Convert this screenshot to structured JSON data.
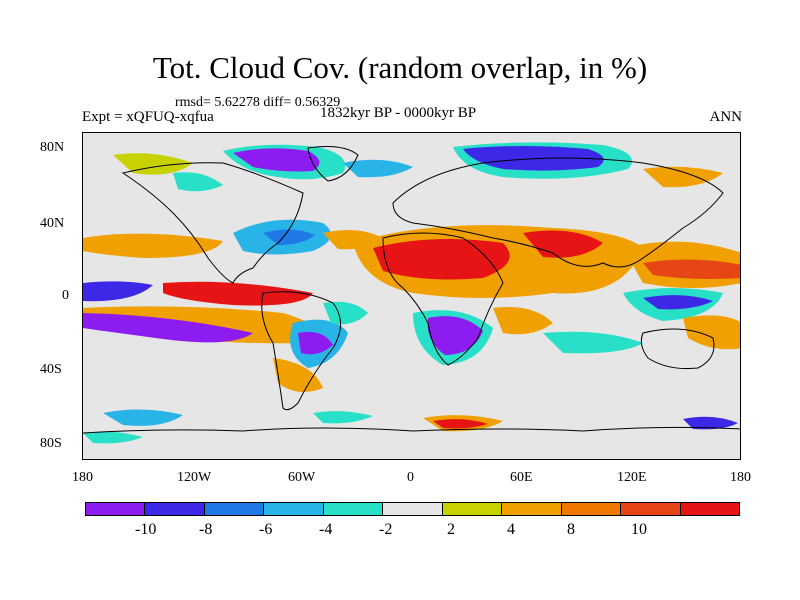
{
  "title": "Tot. Cloud Cov. (random overlap, in %)",
  "stats": "rmsd= 5.62278 diff= 0.56329",
  "experiment": "Expt = xQFUQ-xqfua",
  "period": "1832kyr BP - 0000kyr BP",
  "season": "ANN",
  "lat_labels": [
    "80N",
    "40N",
    "0",
    "40S",
    "80S"
  ],
  "lon_labels": [
    "180",
    "120W",
    "60W",
    "0",
    "60E",
    "120E",
    "180"
  ],
  "colorbar": {
    "colors": [
      "#8c1cf0",
      "#3c28e6",
      "#1e78e6",
      "#28b4e6",
      "#28e0c8",
      "#e6e6e6",
      "#c8d200",
      "#f0a000",
      "#f07800",
      "#e64614",
      "#e61414"
    ],
    "labels": [
      "-10",
      "-8",
      "-6",
      "-4",
      "-2",
      "2",
      "4",
      "8",
      "10"
    ]
  }
}
